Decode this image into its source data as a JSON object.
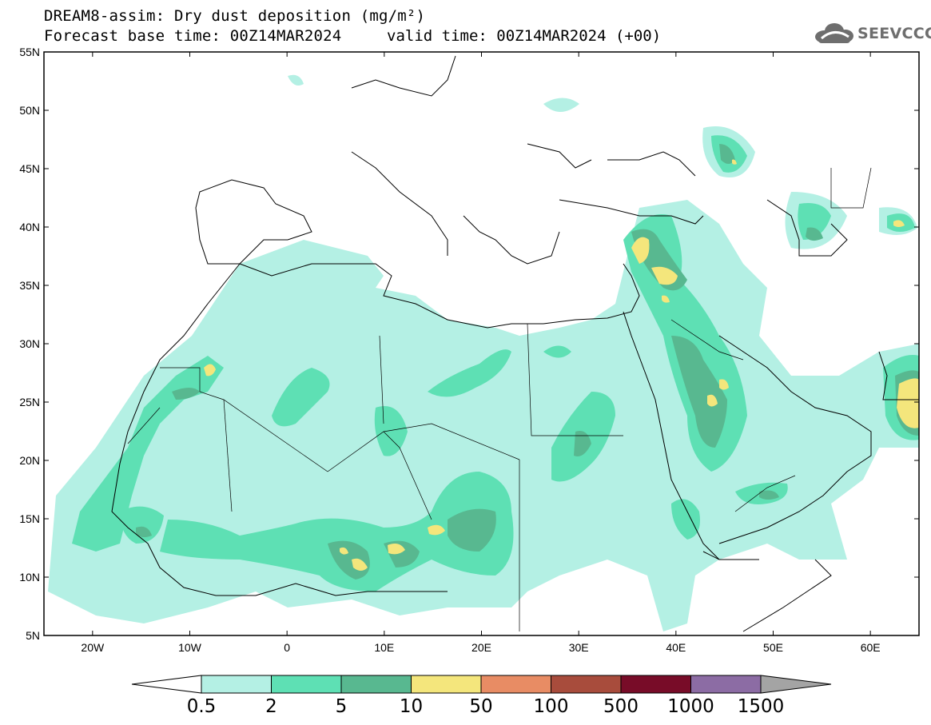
{
  "header": {
    "title_line1": "DREAM8-assim: Dry dust deposition (mg/m²)",
    "forecast_base": "Forecast base time: 00Z14MAR2024",
    "valid_time": "valid time: 00Z14MAR2024 (+00)",
    "logo_text": "SEEVCCC"
  },
  "map": {
    "projection": "equirectangular",
    "lon_range": [
      -25,
      65
    ],
    "lat_range": [
      5,
      55
    ],
    "lat_ticks": [
      "55N",
      "50N",
      "45N",
      "40N",
      "35N",
      "30N",
      "25N",
      "20N",
      "15N",
      "10N",
      "5N"
    ],
    "lon_ticks": [
      "20W",
      "10W",
      "0",
      "10E",
      "20E",
      "30E",
      "40E",
      "50E",
      "60E"
    ]
  },
  "colorbar": {
    "labels": [
      "0.5",
      "2",
      "5",
      "10",
      "50",
      "100",
      "500",
      "1000",
      "1500"
    ],
    "colors": [
      "#b4f0e4",
      "#5ee0b4",
      "#58b890",
      "#f4e67c",
      "#e88c64",
      "#a84c3c",
      "#780c28",
      "#8c6ca4",
      "#a4a4a4"
    ],
    "under_color": "#ffffff",
    "over_color": "#a4a4a4"
  },
  "chart_data": {
    "type": "heatmap",
    "variable": "Dry dust deposition",
    "units": "mg/m²",
    "levels": [
      0.5,
      2,
      5,
      10,
      50,
      100,
      500,
      1000,
      1500
    ],
    "notable_regions": [
      {
        "lon": -8.5,
        "lat": 27.3,
        "level": 10
      },
      {
        "lon": 36.5,
        "lat": 37.5,
        "level": 10
      },
      {
        "lon": 39.5,
        "lat": 36.0,
        "level": 10
      },
      {
        "lon": 45.0,
        "lat": 25.5,
        "level": 10
      },
      {
        "lon": 64.0,
        "lat": 24.5,
        "level": 10
      },
      {
        "lon": 15.5,
        "lat": 14.0,
        "level": 10
      },
      {
        "lon": 11.0,
        "lat": 12.5,
        "level": 10
      },
      {
        "lon": 7.5,
        "lat": 11.0,
        "level": 10
      },
      {
        "lon": 6.0,
        "lat": 12.5,
        "level": 10
      }
    ]
  }
}
